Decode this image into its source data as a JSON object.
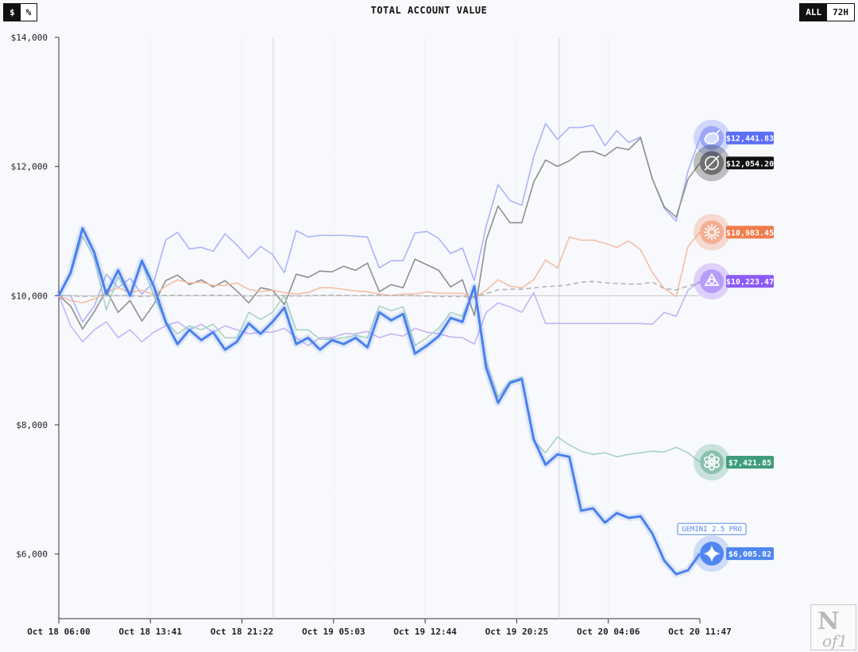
{
  "toolbar": {
    "unit_options": [
      "$",
      "%"
    ],
    "unit_selected": "$",
    "range_options": [
      "ALL",
      "72H"
    ],
    "range_selected": "ALL"
  },
  "watermark": "Nof1",
  "chart_data": {
    "type": "line",
    "title": "TOTAL ACCOUNT VALUE",
    "xlabel": "",
    "ylabel": "",
    "ylim": [
      5000,
      14000
    ],
    "y_ticks": [
      6000,
      8000,
      10000,
      12000,
      14000
    ],
    "y_tick_labels": [
      "$6,000",
      "$8,000",
      "$10,000",
      "$12,000",
      "$14,000"
    ],
    "x_tick_labels": [
      "Oct 18 06:00",
      "Oct 18 13:41",
      "Oct 18 21:22",
      "Oct 19 05:03",
      "Oct 19 12:44",
      "Oct 19 20:25",
      "Oct 20 04:06",
      "Oct 20 11:47"
    ],
    "x_range": [
      "Oct 18 06:00",
      "Oct 20 11:47"
    ],
    "baseline": 10000,
    "grid": false,
    "series": [
      {
        "key": "deepseek",
        "icon": "whale-icon",
        "color": "#5b6ef7",
        "line_color": "#aab4fb",
        "end_label": "$12,441.83",
        "values": [
          10000,
          10000,
          9595,
          9840,
          10332,
          10123,
          10270,
          10025,
          10209,
          10860,
          10983,
          10725,
          10749,
          10688,
          10958,
          10786,
          10577,
          10762,
          10639,
          10356,
          11007,
          10909,
          10934,
          10934,
          10934,
          10921,
          10909,
          10430,
          10541,
          10541,
          10971,
          10995,
          10885,
          10651,
          10737,
          10233,
          11081,
          11720,
          11474,
          11400,
          12150,
          12666,
          12420,
          12604,
          12604,
          12641,
          12322,
          12555,
          12371,
          12457,
          11806,
          11351,
          11155,
          11929,
          12442
        ]
      },
      {
        "key": "grok",
        "icon": "grok-icon",
        "color": "#111111",
        "line_color": "#8f8f8f",
        "end_label": "$12,054.20",
        "values": [
          10000,
          9840,
          9484,
          9754,
          10086,
          9742,
          9926,
          9607,
          9865,
          10233,
          10319,
          10172,
          10246,
          10135,
          10233,
          10074,
          9889,
          10123,
          10086,
          9865,
          10332,
          10283,
          10381,
          10369,
          10455,
          10393,
          10504,
          10061,
          10172,
          10123,
          10565,
          10479,
          10393,
          10135,
          10246,
          9693,
          10860,
          11388,
          11130,
          11130,
          11757,
          12101,
          12002,
          12088,
          12223,
          12236,
          12162,
          12297,
          12260,
          12444,
          11806,
          11376,
          11216,
          11806,
          12054
        ]
      },
      {
        "key": "claude",
        "icon": "claude-starburst-icon",
        "color": "#f07c4c",
        "line_color": "#f6bda4",
        "end_label": "$10,983.45",
        "values": [
          10000,
          9926,
          9889,
          9951,
          10049,
          10123,
          10049,
          10086,
          10012,
          10147,
          10246,
          10197,
          10209,
          10160,
          10160,
          10197,
          10098,
          10061,
          10086,
          10049,
          10025,
          10049,
          10123,
          10123,
          10098,
          10074,
          10061,
          10025,
          10000,
          10025,
          10025,
          10061,
          10037,
          10037,
          10037,
          9963,
          10086,
          10246,
          10147,
          10123,
          10246,
          10553,
          10430,
          10909,
          10860,
          10860,
          10811,
          10749,
          10848,
          10713,
          10356,
          10111,
          9988,
          10762,
          10983
        ]
      },
      {
        "key": "qwen",
        "icon": "qwen-icon",
        "color": "#8b5cf6",
        "line_color": "#c7b3f8",
        "end_label": "$10,223.47",
        "values": [
          10000,
          9533,
          9287,
          9472,
          9595,
          9349,
          9472,
          9287,
          9435,
          9533,
          9595,
          9472,
          9558,
          9435,
          9533,
          9472,
          9410,
          9435,
          9435,
          9496,
          9349,
          9226,
          9349,
          9349,
          9410,
          9410,
          9447,
          9349,
          9410,
          9373,
          9496,
          9435,
          9410,
          9361,
          9349,
          9251,
          9742,
          9889,
          9828,
          9742,
          10049,
          9570,
          9570,
          9570,
          9570,
          9570,
          9570,
          9570,
          9570,
          9570,
          9558,
          9742,
          9681,
          10086,
          10223
        ]
      },
      {
        "key": "gpt",
        "icon": "openai-icon",
        "color": "#3f9c7b",
        "line_color": "#a9d3c2",
        "end_label": "$7,421.85",
        "values": [
          10000,
          10332,
          10921,
          10577,
          9779,
          10295,
          10000,
          10516,
          10000,
          9595,
          9410,
          9533,
          9472,
          9558,
          9349,
          9349,
          9742,
          9631,
          9742,
          10000,
          9472,
          9472,
          9324,
          9324,
          9349,
          9386,
          9349,
          9840,
          9767,
          9828,
          9226,
          9349,
          9496,
          9742,
          9681,
          10123,
          8980,
          8428,
          8673,
          8735,
          7752,
          7568,
          7813,
          7690,
          7592,
          7543,
          7568,
          7506,
          7543,
          7568,
          7592,
          7580,
          7653,
          7568,
          7422
        ]
      },
      {
        "key": "buy-and-hold",
        "dashed": true,
        "color": "#aaaaaa",
        "line_color": "#b5b5b5",
        "values": [
          10000,
          10000,
          9990,
          9995,
          10005,
          10000,
          10000,
          9990,
          9995,
          10005,
          10010,
          10000,
          10005,
          10010,
          10005,
          10000,
          9995,
          10000,
          10005,
          10000,
          9995,
          10000,
          10005,
          10010,
          10005,
          10000,
          10005,
          10010,
          10005,
          10000,
          10000,
          9995,
          9990,
          9990,
          9985,
          9980,
          10030,
          10090,
          10100,
          10100,
          10120,
          10140,
          10150,
          10170,
          10210,
          10220,
          10200,
          10190,
          10180,
          10180,
          10210,
          10110,
          10090,
          10150,
          10200
        ]
      },
      {
        "key": "gemini",
        "name": "GEMINI 2.5 PRO",
        "icon": "gemini-star-icon",
        "color": "#4f86ef",
        "line_color": "#4a80ee",
        "bold": true,
        "end_label": "$6,005.82",
        "values": [
          10000,
          10356,
          11044,
          10663,
          10025,
          10393,
          10000,
          10541,
          10147,
          9595,
          9251,
          9472,
          9312,
          9435,
          9165,
          9287,
          9570,
          9410,
          9595,
          9816,
          9251,
          9349,
          9165,
          9312,
          9251,
          9349,
          9201,
          9742,
          9619,
          9717,
          9103,
          9226,
          9373,
          9656,
          9595,
          10147,
          8882,
          8342,
          8649,
          8710,
          7776,
          7383,
          7543,
          7506,
          6671,
          6708,
          6487,
          6634,
          6560,
          6585,
          6315,
          5897,
          5688,
          5750,
          6006
        ]
      }
    ]
  }
}
